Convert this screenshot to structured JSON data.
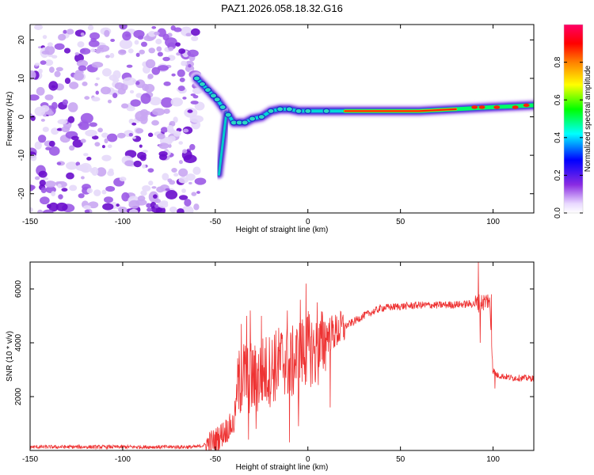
{
  "title": "PAZ1.2026.058.18.32.G16",
  "chart_data": [
    {
      "type": "heatmap",
      "id": "spectrogram",
      "title": "PAZ1.2026.058.18.32.G16",
      "xlabel": "Height of straight line (km)",
      "ylabel": "Frequency (Hz)",
      "xlim": [
        -150,
        122
      ],
      "ylim": [
        -25,
        24
      ],
      "xticks": [
        -150,
        -100,
        -50,
        0,
        50,
        100
      ],
      "yticks": [
        -20,
        -10,
        0,
        10,
        20
      ],
      "noise_region_x": [
        -150,
        -60
      ],
      "main_ridge": [
        [
          -60,
          10
        ],
        [
          -57,
          8.5
        ],
        [
          -54,
          7
        ],
        [
          -51,
          5.5
        ],
        [
          -49,
          4.5
        ],
        [
          -46,
          2.5
        ],
        [
          -43,
          0.5
        ],
        [
          -40,
          -1.5
        ],
        [
          -37,
          -1.5
        ],
        [
          -34,
          -1.5
        ],
        [
          -30,
          -0.5
        ],
        [
          -25,
          0
        ],
        [
          -20,
          1.5
        ],
        [
          -15,
          2
        ],
        [
          -10,
          2
        ],
        [
          -5,
          1.5
        ],
        [
          0,
          1.5
        ],
        [
          10,
          1.5
        ],
        [
          20,
          1.5
        ],
        [
          40,
          1.5
        ],
        [
          60,
          1.5
        ],
        [
          80,
          2
        ],
        [
          100,
          2.5
        ],
        [
          122,
          3
        ]
      ],
      "side_branch": [
        [
          -44,
          1
        ],
        [
          -45,
          -3
        ],
        [
          -46,
          -7
        ],
        [
          -47,
          -11
        ],
        [
          -48,
          -15
        ]
      ]
    },
    {
      "type": "line",
      "id": "snr",
      "xlabel": "Height of straight line (km)",
      "ylabel": "SNR (10 * v/v)",
      "xlim": [
        -150,
        122
      ],
      "ylim": [
        0,
        7000
      ],
      "xticks": [
        -150,
        -100,
        -50,
        0,
        50,
        100
      ],
      "yticks": [
        2000,
        4000,
        6000
      ],
      "series": [
        {
          "name": "SNR",
          "color": "#ee3333",
          "keypoints": [
            [
              -150,
              130
            ],
            [
              -100,
              130
            ],
            [
              -60,
              130
            ],
            [
              -55,
              220
            ],
            [
              -50,
              350
            ],
            [
              -45,
              700
            ],
            [
              -40,
              1000
            ],
            [
              -38,
              2300
            ],
            [
              -35,
              2800
            ],
            [
              -32,
              2700
            ],
            [
              -28,
              2600
            ],
            [
              -25,
              2900
            ],
            [
              -20,
              3000
            ],
            [
              -15,
              3300
            ],
            [
              -12,
              3400
            ],
            [
              -10,
              3100
            ],
            [
              -5,
              3500
            ],
            [
              0,
              3800
            ],
            [
              3,
              3700
            ],
            [
              5,
              3500
            ],
            [
              10,
              4300
            ],
            [
              15,
              4400
            ],
            [
              20,
              4600
            ],
            [
              25,
              4800
            ],
            [
              30,
              5000
            ],
            [
              40,
              5300
            ],
            [
              50,
              5350
            ],
            [
              60,
              5400
            ],
            [
              70,
              5400
            ],
            [
              80,
              5420
            ],
            [
              90,
              5450
            ],
            [
              94,
              5500
            ],
            [
              96,
              5550
            ],
            [
              98,
              5600
            ],
            [
              100,
              3000
            ],
            [
              102,
              2800
            ],
            [
              110,
              2700
            ],
            [
              122,
              2680
            ]
          ],
          "spikes": [
            [
              -36,
              4700
            ],
            [
              -33,
              5000
            ],
            [
              -31,
              5200
            ],
            [
              -25,
              5000
            ],
            [
              -18,
              4300
            ],
            [
              -11,
              5200
            ],
            [
              -4,
              5600
            ],
            [
              -1,
              6200
            ],
            [
              5,
              5500
            ],
            [
              12,
              4700
            ],
            [
              92,
              7000
            ],
            [
              99,
              5800
            ]
          ],
          "dips": [
            [
              -32,
              400
            ],
            [
              -28,
              800
            ],
            [
              -10,
              300
            ],
            [
              -5,
              900
            ],
            [
              12,
              1600
            ],
            [
              93,
              4000
            ],
            [
              101,
              2300
            ]
          ]
        }
      ]
    }
  ],
  "colorbar": {
    "label": "Normalized spectral amplitude",
    "range": [
      0,
      1
    ],
    "ticks": [
      "0.0",
      "0.2",
      "0.4",
      "0.6",
      "0.8"
    ],
    "tick_values": [
      0,
      0.2,
      0.4,
      0.6,
      0.8
    ],
    "colors": [
      "#ffffff",
      "#8a2be2",
      "#0000ff",
      "#00ffff",
      "#00ff00",
      "#ffff00",
      "#ff8000",
      "#ff0000",
      "#ff0066"
    ]
  }
}
